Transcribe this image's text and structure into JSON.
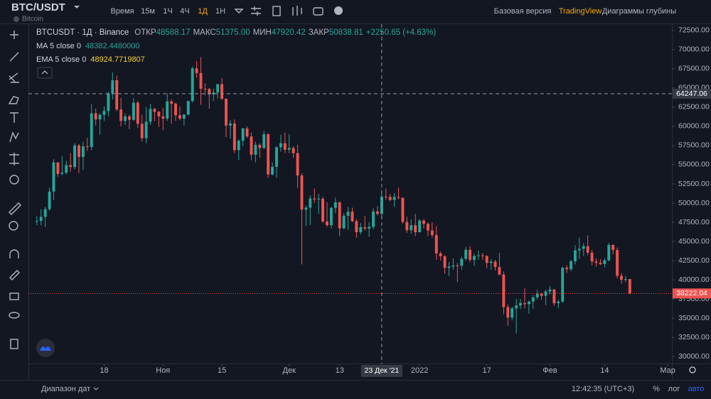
{
  "header": {
    "symbol": "BTC/USDT",
    "subtitle": "Bitcoin",
    "intervals": [
      "Время",
      "15м",
      "1Ч",
      "4Ч",
      "1Д",
      "1Н"
    ],
    "links": [
      "Базовая версия",
      "TradingView",
      "Диаграммы глубины"
    ]
  },
  "legend": {
    "title": "BTCUSDT · 1Д · Binance",
    "ohlc": [
      {
        "label": "ОТКР",
        "value": "48588.17"
      },
      {
        "label": "МАКС",
        "value": "51375.00"
      },
      {
        "label": "МИН",
        "value": "47920.42"
      },
      {
        "label": "ЗАКР",
        "value": "50838.81"
      }
    ],
    "change": "+2250.65 (+4.63%)",
    "indicators": [
      {
        "name": "MA 5 close 0",
        "value": "48382.4480000",
        "color": "#26a69a"
      },
      {
        "name": "EMA 5 close 0",
        "value": "48924.7719807",
        "color": "#f5d133"
      }
    ]
  },
  "chart_data": {
    "type": "candlestick",
    "up_color": "#26a69a",
    "down_color": "#ef5350",
    "grid": false,
    "candles": [
      [
        47600,
        48300,
        47100,
        47666
      ],
      [
        47666,
        49200,
        47100,
        48200
      ],
      [
        48200,
        49500,
        46900,
        49200
      ],
      [
        49200,
        52000,
        49000,
        51500
      ],
      [
        51500,
        55700,
        50400,
        55300
      ],
      [
        55300,
        55300,
        53400,
        53800
      ],
      [
        53800,
        56100,
        53600,
        53950
      ],
      [
        53950,
        55500,
        53700,
        54950
      ],
      [
        54950,
        56500,
        54100,
        54700
      ],
      [
        54700,
        57800,
        54400,
        57500
      ],
      [
        57500,
        57700,
        53900,
        56000
      ],
      [
        56000,
        58000,
        54300,
        57400
      ],
      [
        57400,
        58500,
        56800,
        57300
      ],
      [
        57300,
        62900,
        56900,
        61700
      ],
      [
        61700,
        62300,
        60100,
        60900
      ],
      [
        60900,
        61700,
        58900,
        61500
      ],
      [
        61500,
        62600,
        60700,
        62000
      ],
      [
        62000,
        64500,
        61300,
        64300
      ],
      [
        64300,
        67000,
        63500,
        66000
      ],
      [
        66000,
        66600,
        62000,
        62200
      ],
      [
        62200,
        63700,
        60000,
        60700
      ],
      [
        60700,
        61700,
        60200,
        61300
      ],
      [
        61300,
        61500,
        59600,
        60850
      ],
      [
        60850,
        63700,
        60700,
        63080
      ],
      [
        63080,
        63300,
        59800,
        60330
      ],
      [
        60330,
        61500,
        58000,
        58450
      ],
      [
        58450,
        62500,
        57800,
        60600
      ],
      [
        60600,
        62900,
        60200,
        62270
      ],
      [
        62270,
        62400,
        60700,
        61890
      ],
      [
        61890,
        62000,
        59900,
        61300
      ],
      [
        61300,
        62400,
        59500,
        61000
      ],
      [
        61000,
        64300,
        60700,
        63250
      ],
      [
        63250,
        63500,
        60300,
        62940
      ],
      [
        62940,
        63100,
        60700,
        61440
      ],
      [
        61440,
        62600,
        60800,
        61000
      ],
      [
        61000,
        61600,
        60100,
        61530
      ],
      [
        61530,
        63300,
        61400,
        63300
      ],
      [
        63300,
        67800,
        63100,
        67550
      ],
      [
        67550,
        68500,
        66300,
        66940
      ],
      [
        66940,
        69000,
        62800,
        64900
      ],
      [
        64900,
        65600,
        64100,
        64860
      ],
      [
        64860,
        65000,
        62300,
        64150
      ],
      [
        64150,
        64900,
        63300,
        64400
      ],
      [
        64400,
        65500,
        63600,
        65500
      ],
      [
        65500,
        66300,
        63400,
        63600
      ],
      [
        63600,
        63600,
        58600,
        60100
      ],
      [
        60100,
        60800,
        58400,
        60360
      ],
      [
        60360,
        60900,
        56500,
        56900
      ],
      [
        56900,
        58300,
        55600,
        58120
      ],
      [
        58120,
        59800,
        57400,
        59720
      ],
      [
        59720,
        60000,
        58500,
        58680
      ],
      [
        58680,
        59200,
        55600,
        56300
      ],
      [
        56300,
        58000,
        55300,
        57570
      ],
      [
        57570,
        57800,
        55900,
        57170
      ],
      [
        57170,
        59400,
        57000,
        58960
      ],
      [
        58960,
        59100,
        53300,
        53730
      ],
      [
        53730,
        55300,
        53600,
        54720
      ],
      [
        54720,
        57400,
        53300,
        57270
      ],
      [
        57270,
        58900,
        56700,
        57800
      ],
      [
        57800,
        59200,
        56500,
        56950
      ],
      [
        56950,
        59000,
        56500,
        57180
      ],
      [
        57180,
        57400,
        55900,
        56510
      ],
      [
        56510,
        57600,
        52000,
        53600
      ],
      [
        53600,
        53900,
        42000,
        49150
      ],
      [
        49150,
        49700,
        47000,
        49400
      ],
      [
        49400,
        51000,
        47100,
        50590
      ],
      [
        50590,
        51900,
        50000,
        50470
      ],
      [
        50470,
        51200,
        48600,
        50570
      ],
      [
        50570,
        50800,
        47400,
        47600
      ],
      [
        47600,
        50100,
        46900,
        47120
      ],
      [
        47120,
        49500,
        46700,
        49380
      ],
      [
        49380,
        50700,
        48700,
        50100
      ],
      [
        50100,
        50200,
        45700,
        46700
      ],
      [
        46700,
        48700,
        46600,
        48340
      ],
      [
        48340,
        49500,
        46500,
        48880
      ],
      [
        48880,
        49400,
        47500,
        47640
      ],
      [
        47640,
        47900,
        45500,
        46200
      ],
      [
        46200,
        47400,
        45900,
        46850
      ],
      [
        46850,
        48300,
        46400,
        46680
      ],
      [
        46680,
        47500,
        45600,
        46900
      ],
      [
        46900,
        49300,
        46600,
        48900
      ],
      [
        48900,
        49600,
        48400,
        48590
      ],
      [
        48588.17,
        51375,
        47920.42,
        50838.81
      ],
      [
        50838.81,
        51900,
        50400,
        50800
      ],
      [
        50800,
        51200,
        50200,
        50400
      ],
      [
        50400,
        51300,
        49500,
        50800
      ],
      [
        50800,
        52000,
        50500,
        50700
      ],
      [
        50700,
        50700,
        47300,
        47540
      ],
      [
        47540,
        48200,
        46100,
        46460
      ],
      [
        46460,
        47900,
        46000,
        47120
      ],
      [
        47120,
        48600,
        45700,
        46200
      ],
      [
        46200,
        47900,
        46200,
        47720
      ],
      [
        47720,
        47900,
        46700,
        47290
      ],
      [
        47290,
        47500,
        45700,
        46430
      ],
      [
        46430,
        47500,
        45500,
        45830
      ],
      [
        45830,
        47000,
        42600,
        43430
      ],
      [
        43430,
        43700,
        42500,
        43080
      ],
      [
        43080,
        43200,
        40800,
        41560
      ],
      [
        41560,
        42300,
        40500,
        41730
      ],
      [
        41730,
        42800,
        41300,
        41860
      ],
      [
        41860,
        42200,
        39700,
        41830
      ],
      [
        41830,
        43000,
        41300,
        42740
      ],
      [
        42740,
        44300,
        42500,
        43920
      ],
      [
        43920,
        44400,
        42300,
        42590
      ],
      [
        42590,
        43400,
        41800,
        43100
      ],
      [
        43100,
        43800,
        42600,
        43180
      ],
      [
        43180,
        43500,
        42600,
        43100
      ],
      [
        43100,
        43200,
        41500,
        42200
      ],
      [
        42200,
        42700,
        41300,
        42370
      ],
      [
        42370,
        42600,
        41200,
        41660
      ],
      [
        41660,
        43500,
        40600,
        40680
      ],
      [
        40680,
        41100,
        35500,
        36450
      ],
      [
        36450,
        36800,
        34000,
        35070
      ],
      [
        35070,
        36500,
        34700,
        36280
      ],
      [
        36280,
        37500,
        33000,
        36660
      ],
      [
        36660,
        37500,
        36200,
        36960
      ],
      [
        36960,
        38900,
        36300,
        36830
      ],
      [
        36830,
        37300,
        35600,
        37160
      ],
      [
        37160,
        38000,
        36200,
        37710
      ],
      [
        37710,
        38700,
        37400,
        38170
      ],
      [
        38170,
        38300,
        37400,
        37920
      ],
      [
        37920,
        38700,
        36700,
        38480
      ],
      [
        38480,
        39200,
        38100,
        38740
      ],
      [
        38740,
        38800,
        36600,
        36950
      ],
      [
        36950,
        37400,
        36300,
        37150
      ],
      [
        37150,
        41700,
        37000,
        41570
      ],
      [
        41570,
        41900,
        40900,
        41380
      ],
      [
        41380,
        42600,
        41100,
        42410
      ],
      [
        42410,
        44500,
        42000,
        43840
      ],
      [
        43840,
        45500,
        42700,
        44040
      ],
      [
        44040,
        44800,
        43100,
        44380
      ],
      [
        44380,
        45800,
        43200,
        43540
      ],
      [
        43540,
        43900,
        41900,
        42380
      ],
      [
        42380,
        42800,
        41700,
        42210
      ],
      [
        42210,
        42700,
        41900,
        42050
      ],
      [
        42050,
        42800,
        41600,
        42540
      ],
      [
        42540,
        44800,
        42400,
        44550
      ],
      [
        44550,
        44600,
        43300,
        43890
      ],
      [
        43890,
        44200,
        40200,
        40520
      ],
      [
        40520,
        40900,
        39500,
        40000
      ],
      [
        40000,
        40500,
        39700,
        40100
      ],
      [
        40100,
        40100,
        38100,
        38222.04
      ]
    ],
    "xlim": [
      -2,
      151
    ],
    "xticks": [
      {
        "value": 16,
        "label": "18"
      },
      {
        "value": 30,
        "label": "Ноя"
      },
      {
        "value": 44,
        "label": "15"
      },
      {
        "value": 60,
        "label": "Дек"
      },
      {
        "value": 72,
        "label": "13"
      },
      {
        "value": 91,
        "label": "2022"
      },
      {
        "value": 107,
        "label": "17"
      },
      {
        "value": 122,
        "label": "Фев"
      },
      {
        "value": 135,
        "label": "14"
      },
      {
        "value": 150,
        "label": "Мар"
      }
    ],
    "ylim": [
      29000,
      73500
    ],
    "yticks": [
      {
        "value": 30000,
        "label": "30000.00"
      },
      {
        "value": 32500,
        "label": "32500.00"
      },
      {
        "value": 35000,
        "label": "35000.00"
      },
      {
        "value": 37500,
        "label": "37500.00"
      },
      {
        "value": 40000,
        "label": "40000.00"
      },
      {
        "value": 42500,
        "label": "42500.00"
      },
      {
        "value": 45000,
        "label": "45000.00"
      },
      {
        "value": 47500,
        "label": "47500.00"
      },
      {
        "value": 50000,
        "label": "50000.00"
      },
      {
        "value": 52500,
        "label": "52500.00"
      },
      {
        "value": 55000,
        "label": "55000.00"
      },
      {
        "value": 57500,
        "label": "57500.00"
      },
      {
        "value": 60000,
        "label": "60000.00"
      },
      {
        "value": 62500,
        "label": "62500.00"
      },
      {
        "value": 65000,
        "label": "65000.00"
      },
      {
        "value": 67500,
        "label": "67500.00"
      },
      {
        "value": 70000,
        "label": "70000.00"
      },
      {
        "value": 72500,
        "label": "72500.00"
      }
    ],
    "crosshair": {
      "x": {
        "value": 82,
        "label": "23 Дек '21"
      },
      "y": 64247.06
    },
    "last_price": 38222.04
  },
  "footer": {
    "range": "Диапазон дат",
    "time": "12:42:35 (UTC+3)",
    "options": [
      "%",
      "лог",
      "авто"
    ]
  }
}
